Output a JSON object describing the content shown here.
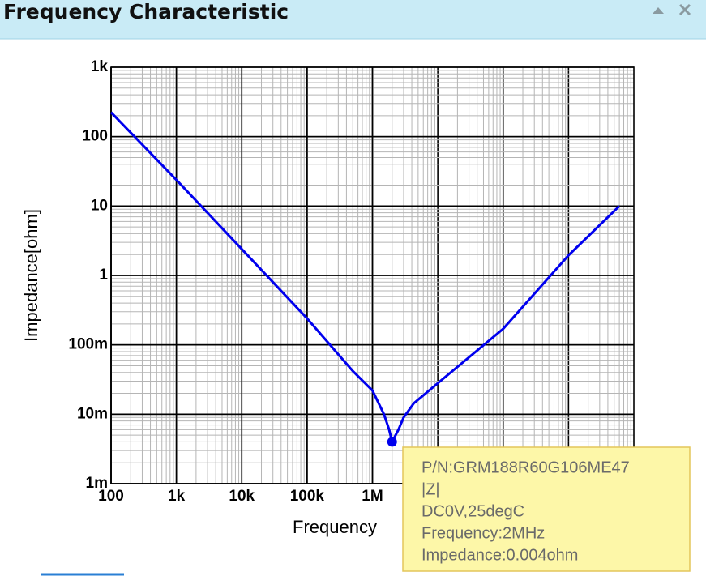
{
  "chart_data": {
    "type": "line",
    "title": "Frequency Characteristic",
    "y_label": "Impedance[ohm]",
    "x_label": "Frequency",
    "log_x": true,
    "log_y": true,
    "grid": true,
    "xlim": [
      100,
      10000000000
    ],
    "ylim": [
      0.001,
      1000
    ],
    "xticks": [
      100,
      {
        "value": 1000,
        "label": "1k"
      },
      {
        "value": 10000,
        "label": "10k"
      },
      {
        "value": 100000,
        "label": "100k"
      },
      {
        "value": 1000000,
        "label": "1M"
      }
    ],
    "yticks": [
      {
        "value": 0.001,
        "label": "1m"
      },
      {
        "value": 0.01,
        "label": "10m"
      },
      {
        "value": 0.1,
        "label": "100m"
      },
      1,
      10,
      100,
      {
        "value": 1000,
        "label": "1k"
      }
    ],
    "series": [
      {
        "name": "|Z|",
        "color": "#0000ee",
        "x": [
          100,
          1000,
          10000,
          100000,
          500000,
          1000000,
          1500000,
          1800000,
          2000000,
          2500000,
          3000000,
          4300000,
          5600000,
          10000000,
          100000000,
          1000000000,
          6000000000
        ],
        "values": [
          224,
          23.8,
          2.4,
          0.24,
          0.042,
          0.022,
          0.01,
          0.006,
          0.004,
          0.006,
          0.009,
          0.0144,
          0.0177,
          0.028,
          0.17,
          1.95,
          10
        ]
      }
    ],
    "marker": {
      "x": 2000000,
      "y": 0.004
    },
    "tooltip": [
      "P/N:GRM188R60G106ME47",
      "|Z|",
      "DC0V,25degC",
      "Frequency:2MHz",
      "Impedance:0.004ohm"
    ]
  }
}
